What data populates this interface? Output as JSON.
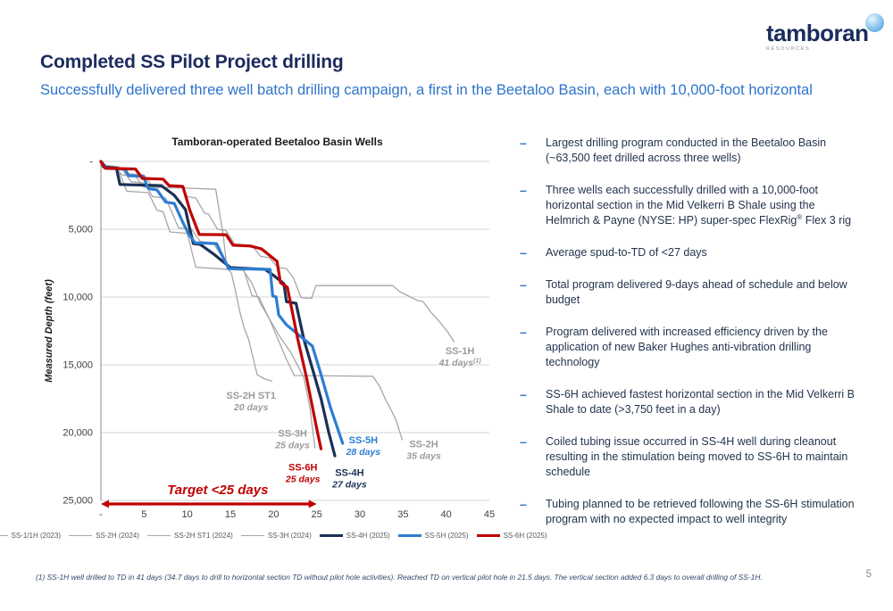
{
  "slide": {
    "title": "Completed SS Pilot Project drilling",
    "subtitle": "Successfully delivered three well batch drilling campaign, a first in the Beetaloo Basin, each with 10,000-foot horizontal",
    "page_number": "5",
    "footnote": "(1) SS-1H well drilled to TD in 41 days (34.7 days to drill to horizontal section TD without pilot hole activities). Reached TD on vertical pilot hole in 21.5 days. The vertical section added 6.3 days to overall drilling of SS-1H."
  },
  "logo": {
    "wordmark": "tamboran",
    "subtext": "RESOURCES"
  },
  "bullet_marker": "–",
  "bullets": [
    "Largest drilling program conducted in the Beetaloo Basin (~63,500 feet drilled across three wells)",
    "Three wells each successfully drilled with a 10,000-foot horizontal section in the Mid Velkerri B Shale using the Helmrich & Payne (NYSE: HP) super-spec FlexRig® Flex 3 rig",
    "Average spud-to-TD of <27 days",
    "Total program delivered 9-days ahead of schedule and below budget",
    "Program delivered with increased efficiency driven by the application of new Baker Hughes anti-vibration drilling technology",
    "SS-6H achieved fastest horizontal section in the Mid Velkerri B Shale to date (>3,750 feet in a day)",
    "Coiled tubing issue occurred in SS-4H well during cleanout resulting in the stimulation being moved to SS-6H to maintain schedule",
    "Tubing planned to be retrieved following the SS-6H stimulation program with no expected impact to well integrity"
  ],
  "colors": {
    "title_navy": "#1c2b5e",
    "accent_blue": "#2d74c9",
    "series_gray": "#a6a6a6",
    "series_navy": "#1b3055",
    "series_blue": "#2d7dd2",
    "series_red": "#c00000",
    "gridline": "#d6d6d6",
    "axis": "#9e9e9e"
  },
  "chart_data": {
    "type": "line",
    "title": "Tamboran-operated Beetaloo Basin Wells",
    "xlabel": "",
    "ylabel": "Measured Depth (feet)",
    "x_unit": "days",
    "y_unit": "feet",
    "xlim": [
      0,
      45
    ],
    "ylim": [
      0,
      25000
    ],
    "y_inverted": true,
    "grid": "horizontal",
    "legend_position": "bottom",
    "x_ticks": [
      "-",
      "5",
      "10",
      "15",
      "20",
      "25",
      "30",
      "35",
      "40",
      "45"
    ],
    "y_ticks": [
      "-",
      "5,000",
      "10,000",
      "15,000",
      "20,000",
      "25,000"
    ],
    "series": [
      {
        "name": "SS-1/1H (2023)",
        "color": "#a6a6a6",
        "width": 1.3,
        "points": [
          [
            0,
            0
          ],
          [
            0.6,
            300
          ],
          [
            2,
            380
          ],
          [
            3,
            900
          ],
          [
            5,
            1000
          ],
          [
            6,
            1900
          ],
          [
            9.5,
            1950
          ],
          [
            10,
            2600
          ],
          [
            11,
            2700
          ],
          [
            12,
            3800
          ],
          [
            12.5,
            3900
          ],
          [
            13.5,
            5000
          ],
          [
            14.5,
            5100
          ],
          [
            15.5,
            6100
          ],
          [
            17.5,
            6200
          ],
          [
            18.5,
            7000
          ],
          [
            19.5,
            7100
          ],
          [
            20.5,
            7830
          ],
          [
            21.5,
            7900
          ],
          [
            22.3,
            8600
          ],
          [
            23.2,
            10060
          ],
          [
            24.4,
            10100
          ],
          [
            24.9,
            9160
          ],
          [
            33.8,
            9160
          ],
          [
            34.6,
            9600
          ],
          [
            36.7,
            10260
          ],
          [
            37.3,
            10320
          ],
          [
            38.2,
            11100
          ],
          [
            39.2,
            11800
          ],
          [
            40.2,
            12600
          ],
          [
            40.9,
            13290
          ]
        ]
      },
      {
        "name": "SS-2H (2024)",
        "color": "#a6a6a6",
        "width": 1.3,
        "points": [
          [
            0,
            0
          ],
          [
            1,
            500
          ],
          [
            2.5,
            600
          ],
          [
            3.5,
            1500
          ],
          [
            5,
            1600
          ],
          [
            6,
            2600
          ],
          [
            7.5,
            2700
          ],
          [
            9,
            4900
          ],
          [
            10.5,
            5000
          ],
          [
            11.5,
            5900
          ],
          [
            13,
            6000
          ],
          [
            14,
            7000
          ],
          [
            15,
            7830
          ],
          [
            16.5,
            7900
          ],
          [
            17.5,
            9900
          ],
          [
            18.3,
            10000
          ],
          [
            19.5,
            11600
          ],
          [
            20.5,
            13100
          ],
          [
            21.5,
            14600
          ],
          [
            22.4,
            15790
          ],
          [
            31.5,
            15850
          ],
          [
            32.3,
            16600
          ],
          [
            33,
            17600
          ],
          [
            33.6,
            18300
          ],
          [
            34.2,
            19100
          ],
          [
            34.9,
            20530
          ]
        ]
      },
      {
        "name": "SS-2H ST1 (2024)",
        "color": "#a6a6a6",
        "width": 1.3,
        "points": [
          [
            0,
            0
          ],
          [
            0.5,
            300
          ],
          [
            1.5,
            400
          ],
          [
            2.5,
            1000
          ],
          [
            4,
            1100
          ],
          [
            5,
            1900
          ],
          [
            9.8,
            1970
          ],
          [
            13.3,
            2050
          ],
          [
            13.8,
            4000
          ],
          [
            14.2,
            5600
          ],
          [
            14.6,
            7900
          ],
          [
            15.1,
            8200
          ],
          [
            15.6,
            9600
          ],
          [
            16.1,
            11100
          ],
          [
            16.6,
            12300
          ],
          [
            17.1,
            13100
          ],
          [
            18.1,
            15730
          ],
          [
            19,
            16050
          ],
          [
            19.8,
            16190
          ]
        ]
      },
      {
        "name": "SS-3H (2024)",
        "color": "#a6a6a6",
        "width": 1.3,
        "points": [
          [
            0,
            0
          ],
          [
            0.8,
            500
          ],
          [
            2,
            600
          ],
          [
            3,
            2200
          ],
          [
            5.5,
            2300
          ],
          [
            6.5,
            3600
          ],
          [
            7.2,
            3700
          ],
          [
            8,
            5200
          ],
          [
            10,
            5300
          ],
          [
            11,
            7800
          ],
          [
            16.5,
            8030
          ],
          [
            17.5,
            9000
          ],
          [
            18.5,
            10500
          ],
          [
            20.7,
            12890
          ],
          [
            22,
            14100
          ],
          [
            23.5,
            15930
          ],
          [
            24.2,
            18100
          ],
          [
            24.8,
            21120
          ]
        ]
      },
      {
        "name": "SS-4H (2025)",
        "color": "#1b3055",
        "width": 3.2,
        "points": [
          [
            0,
            0
          ],
          [
            0.3,
            400
          ],
          [
            1.8,
            500
          ],
          [
            2.2,
            1700
          ],
          [
            7,
            1780
          ],
          [
            8.5,
            2500
          ],
          [
            9.8,
            3550
          ],
          [
            10.3,
            5000
          ],
          [
            10.7,
            6050
          ],
          [
            11.5,
            6120
          ],
          [
            13,
            6800
          ],
          [
            15,
            7830
          ],
          [
            19,
            7960
          ],
          [
            20,
            8400
          ],
          [
            21.2,
            9010
          ],
          [
            21.5,
            10350
          ],
          [
            22.6,
            10460
          ],
          [
            23.5,
            13100
          ],
          [
            24.7,
            15730
          ],
          [
            25.5,
            17500
          ],
          [
            26.4,
            20000
          ],
          [
            27.1,
            21720
          ]
        ]
      },
      {
        "name": "SS-5H (2025)",
        "color": "#2d7dd2",
        "width": 3.2,
        "points": [
          [
            0,
            0
          ],
          [
            0.7,
            500
          ],
          [
            2.8,
            560
          ],
          [
            3.2,
            1050
          ],
          [
            4.9,
            1100
          ],
          [
            5.5,
            2000
          ],
          [
            6.5,
            2100
          ],
          [
            7.5,
            3000
          ],
          [
            8.5,
            3100
          ],
          [
            9.5,
            4500
          ],
          [
            10.2,
            5400
          ],
          [
            10.9,
            6000
          ],
          [
            13.4,
            6060
          ],
          [
            14.1,
            7000
          ],
          [
            14.8,
            7900
          ],
          [
            19.6,
            7960
          ],
          [
            19.9,
            9930
          ],
          [
            20.3,
            9990
          ],
          [
            20.6,
            11320
          ],
          [
            21.5,
            12050
          ],
          [
            24.5,
            13620
          ],
          [
            25.5,
            15720
          ],
          [
            26.6,
            18160
          ],
          [
            27.3,
            19470
          ],
          [
            28,
            20790
          ]
        ]
      },
      {
        "name": "SS-6H (2025)",
        "color": "#c00000",
        "width": 3.2,
        "points": [
          [
            0,
            0
          ],
          [
            0.5,
            500
          ],
          [
            4,
            560
          ],
          [
            4.8,
            1250
          ],
          [
            7.2,
            1300
          ],
          [
            7.9,
            1780
          ],
          [
            9.5,
            1840
          ],
          [
            10.3,
            3600
          ],
          [
            11.1,
            4930
          ],
          [
            11.4,
            5390
          ],
          [
            14.5,
            5400
          ],
          [
            15.3,
            6180
          ],
          [
            17.3,
            6240
          ],
          [
            18.6,
            6450
          ],
          [
            20.4,
            7370
          ],
          [
            20.8,
            8950
          ],
          [
            21.6,
            9280
          ],
          [
            22.8,
            13090
          ],
          [
            23.8,
            15900
          ],
          [
            25.1,
            20000
          ],
          [
            25.5,
            21200
          ]
        ]
      }
    ],
    "annotations": [
      {
        "name": "SS-1H",
        "days": "41 days",
        "sup": "(1)",
        "day": 41.6,
        "depth": 14200,
        "color": "#9b9b9b"
      },
      {
        "name": "SS-2H ST1",
        "days": "20 days",
        "day": 17.4,
        "depth": 17500,
        "color": "#9b9b9b"
      },
      {
        "name": "SS-3H",
        "days": "25 days",
        "day": 22.2,
        "depth": 20300,
        "color": "#9b9b9b"
      },
      {
        "name": "SS-6H",
        "days": "25 days",
        "day": 23.4,
        "depth": 22800,
        "color": "#c00000"
      },
      {
        "name": "SS-4H",
        "days": "27 days",
        "day": 28.8,
        "depth": 23200,
        "color": "#1b3055"
      },
      {
        "name": "SS-5H",
        "days": "28 days",
        "day": 30.4,
        "depth": 20800,
        "color": "#2d7dd2"
      },
      {
        "name": "SS-2H",
        "days": "35 days",
        "day": 37.4,
        "depth": 21100,
        "color": "#9b9b9b"
      }
    ],
    "target": {
      "label": "Target <25 days",
      "from_day": 0,
      "to_day": 25,
      "color": "#c00000"
    }
  }
}
